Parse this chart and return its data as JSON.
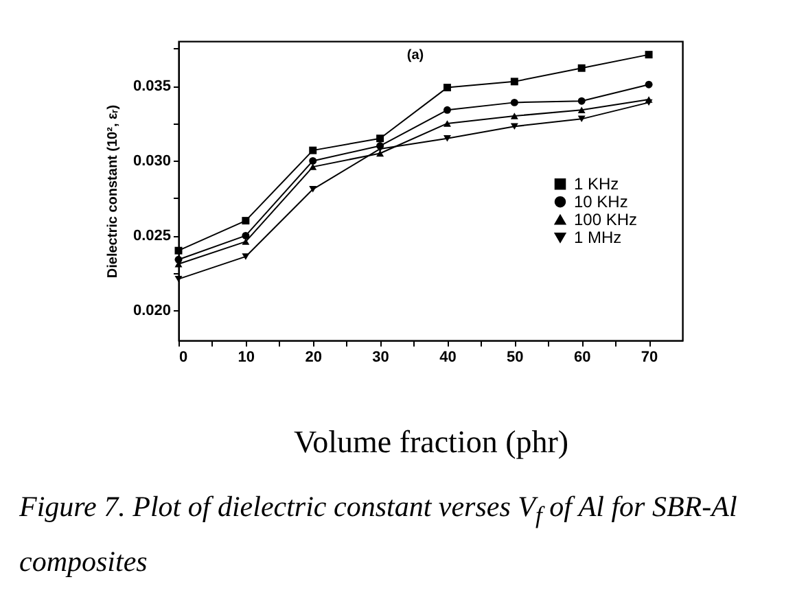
{
  "chart_data": {
    "type": "line",
    "xlabel": "Volume fraction (phr)",
    "ylabel": "Dielectric constant (10², εᵣ)",
    "annotations": [
      "(a)",
      "Figure 7. Plot of dielectric constant verses V$_{f}$ of Al for SBR-Al composites"
    ],
    "x": [
      0,
      10,
      20,
      30,
      40,
      50,
      60,
      70
    ],
    "series": [
      {
        "name": "1 KHz",
        "color": "#000000",
        "marker": "square",
        "values": [
          0.024,
          0.026,
          0.0307,
          0.0315,
          0.0349,
          0.0353,
          0.0362,
          0.0371
        ]
      },
      {
        "name": "10 KHz",
        "color": "#000000",
        "marker": "circle",
        "values": [
          0.0234,
          0.025,
          0.03,
          0.031,
          0.0334,
          0.0339,
          0.034,
          0.0351
        ]
      },
      {
        "name": "100 KHz",
        "color": "#000000",
        "marker": "triangle",
        "values": [
          0.0231,
          0.0246,
          0.0296,
          0.0305,
          0.0325,
          0.033,
          0.0334,
          0.0341
        ]
      },
      {
        "name": "1 MHz",
        "color": "#000000",
        "marker": "triangle-down",
        "values": [
          0.0221,
          0.0236,
          0.0281,
          0.0308,
          0.0315,
          0.0323,
          0.0328,
          0.0339
        ]
      }
    ],
    "xlim": [
      0,
      75
    ],
    "ylim": [
      0.018,
      0.038
    ],
    "xticks": [
      0,
      {
        "value": 5,
        "label": null
      },
      10,
      {
        "value": 15,
        "label": null
      },
      20,
      {
        "value": 25,
        "label": null
      },
      30,
      {
        "value": 35,
        "label": null
      },
      40,
      {
        "value": 45,
        "label": null
      },
      50,
      {
        "value": 55,
        "label": null
      },
      60,
      {
        "value": 65,
        "label": null
      },
      70
    ],
    "yticks": [
      {
        "value": 0.02,
        "label": "0.020"
      },
      {
        "value": 0.0225,
        "label": null
      },
      {
        "value": 0.025,
        "label": "0.025"
      },
      {
        "value": 0.0275,
        "label": null
      },
      {
        "value": 0.03,
        "label": "0.030"
      },
      {
        "value": 0.0325,
        "label": null
      },
      {
        "value": 0.035,
        "label": "0.035"
      },
      {
        "value": 0.0375,
        "label": null
      }
    ],
    "legend": "right",
    "line_style": "solid"
  }
}
